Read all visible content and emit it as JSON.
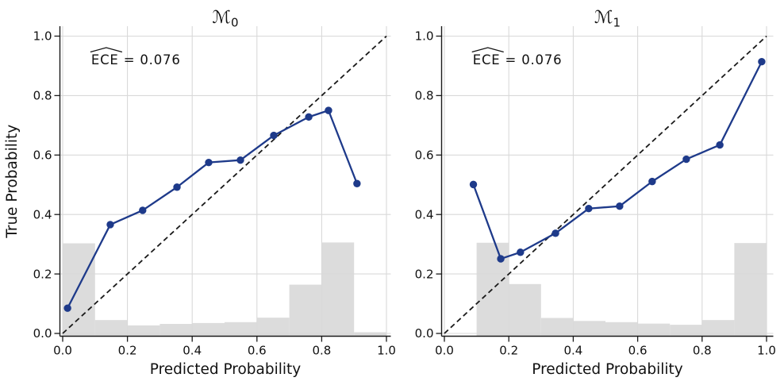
{
  "figure": {
    "kind": "reliability-diagram-pair",
    "colors": {
      "line": "#1e3a8a",
      "marker": "#1e3a8a",
      "histogram": "#dcdcdc",
      "grid": "#d9d9d9",
      "diagonal": "#1a1a1a",
      "spine": "#1a1a1a",
      "text": "#111111"
    }
  },
  "chart_data": [
    {
      "type": "line",
      "subtype": "calibration-reliability-diagram",
      "title": "ℳ",
      "title_subscript": "0",
      "annotation": {
        "hat_text": "ECE",
        "value_text": " = 0.076"
      },
      "xlabel": "Predicted Probability",
      "ylabel": "True Probability",
      "xlim": [
        0.0,
        1.0
      ],
      "ylim": [
        0.0,
        1.0
      ],
      "grid": true,
      "x_tick_values": [
        0.0,
        0.2,
        0.4,
        0.6,
        0.8,
        1.0
      ],
      "x_tick_labels": [
        "0.0",
        "0.2",
        "0.4",
        "0.6",
        "0.8",
        "1.0"
      ],
      "y_tick_values": [
        0.0,
        0.2,
        0.4,
        0.6,
        0.8,
        1.0
      ],
      "y_tick_labels": [
        "0.0",
        "0.2",
        "0.4",
        "0.6",
        "0.8",
        "1.0"
      ],
      "diagonal_line": {
        "from": [
          0,
          0
        ],
        "to": [
          1,
          1
        ],
        "style": "dashed",
        "meaning": "perfect-calibration"
      },
      "series": [
        {
          "name": "calibration-curve",
          "x": [
            0.015,
            0.147,
            0.247,
            0.353,
            0.451,
            0.549,
            0.652,
            0.76,
            0.821,
            0.909
          ],
          "y": [
            0.085,
            0.366,
            0.414,
            0.492,
            0.575,
            0.583,
            0.666,
            0.728,
            0.75,
            0.504
          ]
        }
      ],
      "histogram": {
        "bin_edges": [
          0.0,
          0.1,
          0.2,
          0.3,
          0.4,
          0.5,
          0.6,
          0.7,
          0.8,
          0.9,
          1.0
        ],
        "heights": [
          0.303,
          0.045,
          0.027,
          0.032,
          0.035,
          0.038,
          0.053,
          0.164,
          0.306,
          0.004
        ]
      }
    },
    {
      "type": "line",
      "subtype": "calibration-reliability-diagram",
      "title": "ℳ",
      "title_subscript": "1",
      "annotation": {
        "hat_text": "ECE",
        "value_text": " = 0.076"
      },
      "xlabel": "Predicted Probability",
      "ylabel": "",
      "xlim": [
        0.0,
        1.0
      ],
      "ylim": [
        0.0,
        1.0
      ],
      "grid": true,
      "x_tick_values": [
        0.0,
        0.2,
        0.4,
        0.6,
        0.8,
        1.0
      ],
      "x_tick_labels": [
        "0.0",
        "0.2",
        "0.4",
        "0.6",
        "0.8",
        "1.0"
      ],
      "y_tick_values": [
        0.0,
        0.2,
        0.4,
        0.6,
        0.8,
        1.0
      ],
      "y_tick_labels": [
        "0.0",
        "0.2",
        "0.4",
        "0.6",
        "0.8",
        "1.0"
      ],
      "diagonal_line": {
        "from": [
          0,
          0
        ],
        "to": [
          1,
          1
        ],
        "style": "dashed",
        "meaning": "perfect-calibration"
      },
      "series": [
        {
          "name": "calibration-curve",
          "x": [
            0.09,
            0.175,
            0.236,
            0.345,
            0.448,
            0.544,
            0.645,
            0.751,
            0.855,
            0.985
          ],
          "y": [
            0.501,
            0.251,
            0.273,
            0.337,
            0.42,
            0.428,
            0.511,
            0.586,
            0.634,
            0.914
          ]
        }
      ],
      "histogram": {
        "bin_edges": [
          0.0,
          0.1,
          0.2,
          0.3,
          0.4,
          0.5,
          0.6,
          0.7,
          0.8,
          0.9,
          1.0
        ],
        "heights": [
          0.0,
          0.305,
          0.166,
          0.052,
          0.042,
          0.038,
          0.033,
          0.029,
          0.045,
          0.304
        ]
      }
    }
  ]
}
